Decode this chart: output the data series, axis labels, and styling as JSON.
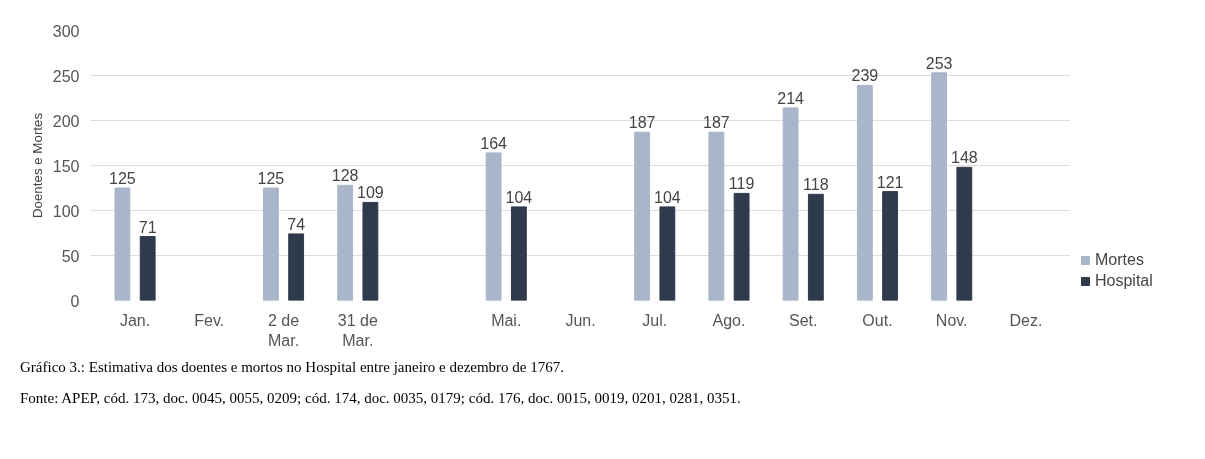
{
  "chart_data": {
    "type": "bar",
    "ylabel": "Doentes e Mortes",
    "categories": [
      "Jan.",
      "Fev.",
      "2 de Mar.",
      "31 de Mar.",
      null,
      "Mai.",
      "Jun.",
      "Jul.",
      "Ago.",
      "Set.",
      "Out.",
      "Nov.",
      "Dez."
    ],
    "series": [
      {
        "name": "Mortes",
        "color": "#a9b6c9",
        "values": [
          125,
          null,
          125,
          128,
          null,
          164,
          null,
          187,
          187,
          214,
          239,
          253,
          null
        ]
      },
      {
        "name": "Hospital",
        "color": "#2f3b4c",
        "values": [
          71,
          null,
          74,
          109,
          null,
          104,
          null,
          104,
          119,
          118,
          121,
          148,
          null
        ]
      }
    ],
    "ylim": [
      0,
      300
    ],
    "yticks": [
      0,
      50,
      100,
      150,
      200,
      250,
      300
    ],
    "grid": "y",
    "legend": "right",
    "data_labels": true,
    "annotations": [
      "Gráfico 3.: Estimativa dos doentes e mortos no Hospital entre janeiro e dezembro de 1767.",
      "Fonte: APEP, cód. 173, doc. 0045, 0055, 0209; cód. 174, doc. 0035, 0179; cód. 176, doc. 0015, 0019, 0201, 0281, 0351."
    ]
  }
}
